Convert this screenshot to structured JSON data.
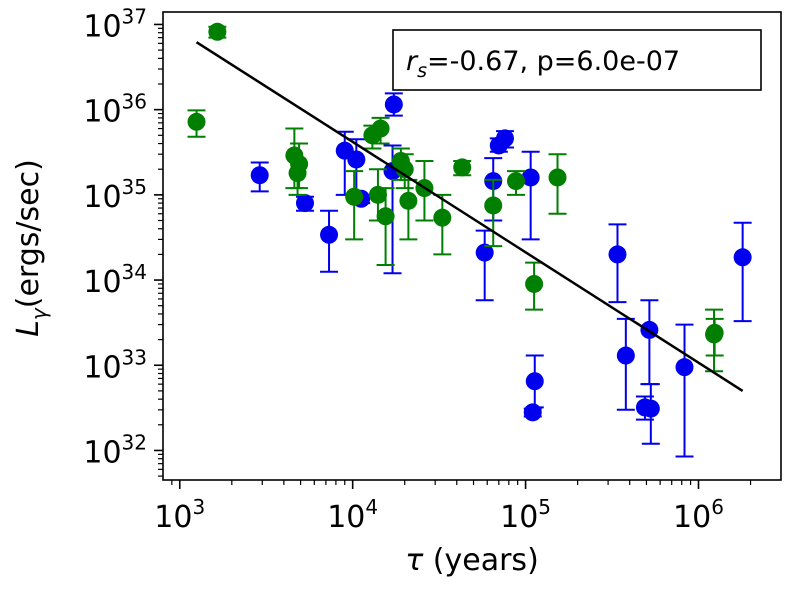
{
  "chart_data": {
    "type": "scatter",
    "title": "",
    "xscale": "log",
    "yscale": "log",
    "xlabel": {
      "symbol": "τ",
      "text": " (years)"
    },
    "ylabel": {
      "symbol": "L",
      "subscript": "γ",
      "text": "(ergs/sec)"
    },
    "xlim": [
      800,
      3000000
    ],
    "ylim": [
      4.5e+31,
      1.4e+37
    ],
    "x_ticks": [
      {
        "base": "10",
        "exp": "3",
        "value": 1000
      },
      {
        "base": "10",
        "exp": "4",
        "value": 10000
      },
      {
        "base": "10",
        "exp": "5",
        "value": 100000
      },
      {
        "base": "10",
        "exp": "6",
        "value": 1000000
      }
    ],
    "y_ticks": [
      {
        "base": "10",
        "exp": "32",
        "value": 1e+32
      },
      {
        "base": "10",
        "exp": "33",
        "value": 1e+33
      },
      {
        "base": "10",
        "exp": "34",
        "value": 1e+34
      },
      {
        "base": "10",
        "exp": "35",
        "value": 1e+35
      },
      {
        "base": "10",
        "exp": "36",
        "value": 1e+36
      },
      {
        "base": "10",
        "exp": "37",
        "value": 1e+37
      }
    ],
    "annotation": {
      "symbol": "r",
      "subscript": "s",
      "text": "=-0.67, p=6.0e-07"
    },
    "fit_line": {
      "x": [
        1250,
        1800000
      ],
      "y": [
        6.2e+36,
        5e+32
      ],
      "color": "#000000"
    },
    "series": [
      {
        "name": "blue",
        "color": "#0000ee",
        "points": [
          {
            "x": 2900,
            "y": 1.7e+35,
            "ylo": 1.1e+35,
            "yhi": 2.4e+35
          },
          {
            "x": 5300,
            "y": 8e+34,
            "ylo": 6.5e+34,
            "yhi": 9.5e+34
          },
          {
            "x": 7300,
            "y": 3.4e+34,
            "ylo": 1.25e+34,
            "yhi": 6.5e+34
          },
          {
            "x": 9000,
            "y": 3.3e+35,
            "ylo": 1e+35,
            "yhi": 5.5e+35
          },
          {
            "x": 10500,
            "y": 2.6e+35,
            "ylo": 1e+35,
            "yhi": 4.5e+35
          },
          {
            "x": 11200,
            "y": 9e+34,
            "ylo": 8e+34,
            "yhi": 1e+35
          },
          {
            "x": 17000,
            "y": 1.9e+35,
            "ylo": 1.2e+34,
            "yhi": 3.8e+35
          },
          {
            "x": 17300,
            "y": 1.15e+36,
            "ylo": 8.5e+35,
            "yhi": 1.55e+36
          },
          {
            "x": 58000,
            "y": 2.1e+34,
            "ylo": 5.8e+33,
            "yhi": 3.8e+34
          },
          {
            "x": 65000,
            "y": 1.45e+35,
            "ylo": 5e+34,
            "yhi": 2.7e+35
          },
          {
            "x": 70000,
            "y": 3.8e+35,
            "ylo": 3.2e+35,
            "yhi": 4.6e+35
          },
          {
            "x": 76000,
            "y": 4.6e+35,
            "ylo": 3.6e+35,
            "yhi": 5.6e+35
          },
          {
            "x": 107000,
            "y": 1.6e+35,
            "ylo": 3e+34,
            "yhi": 3.2e+35
          },
          {
            "x": 110000,
            "y": 2.8e+32,
            "ylo": 2.5e+32,
            "yhi": 3.1e+32
          },
          {
            "x": 113000,
            "y": 6.5e+32,
            "ylo": 3.2e+32,
            "yhi": 1.3e+33
          },
          {
            "x": 340000,
            "y": 2e+34,
            "ylo": 5.5e+33,
            "yhi": 4.5e+34
          },
          {
            "x": 380000,
            "y": 1.3e+33,
            "ylo": 3e+32,
            "yhi": 3.5e+33
          },
          {
            "x": 490000,
            "y": 3.2e+32,
            "ylo": 2.3e+32,
            "yhi": 4.3e+32
          },
          {
            "x": 520000,
            "y": 2.6e+33,
            "ylo": 6e+32,
            "yhi": 5.8e+33
          },
          {
            "x": 530000,
            "y": 3.1e+32,
            "ylo": 1.2e+32,
            "yhi": 6e+32
          },
          {
            "x": 830000,
            "y": 9.5e+32,
            "ylo": 8.5e+31,
            "yhi": 3e+33
          },
          {
            "x": 1800000,
            "y": 1.85e+34,
            "ylo": 3.3e+33,
            "yhi": 4.7e+34
          }
        ]
      },
      {
        "name": "green",
        "color": "#007f00",
        "points": [
          {
            "x": 1250,
            "y": 7.2e+35,
            "ylo": 4.8e+35,
            "yhi": 9.8e+35
          },
          {
            "x": 1650,
            "y": 8.2e+36,
            "ylo": 7e+36,
            "yhi": 9.4e+36
          },
          {
            "x": 4600,
            "y": 2.9e+35,
            "ylo": 1.2e+35,
            "yhi": 6e+35
          },
          {
            "x": 4800,
            "y": 1.8e+35,
            "ylo": 1e+35,
            "yhi": 2.6e+35
          },
          {
            "x": 4900,
            "y": 2.3e+35,
            "ylo": 1.2e+35,
            "yhi": 4e+35
          },
          {
            "x": 10200,
            "y": 9.5e+34,
            "ylo": 3e+34,
            "yhi": 1.9e+35
          },
          {
            "x": 13000,
            "y": 5e+35,
            "ylo": 3.5e+35,
            "yhi": 6.5e+35
          },
          {
            "x": 14000,
            "y": 1e+35,
            "ylo": 5e+34,
            "yhi": 2e+35
          },
          {
            "x": 14500,
            "y": 6e+35,
            "ylo": 4e+35,
            "yhi": 8e+35
          },
          {
            "x": 15500,
            "y": 5.6e+34,
            "ylo": 1.5e+34,
            "yhi": 1.2e+35
          },
          {
            "x": 19000,
            "y": 2.5e+35,
            "ylo": 1.5e+35,
            "yhi": 3.5e+35
          },
          {
            "x": 20000,
            "y": 2e+35,
            "ylo": 1.2e+35,
            "yhi": 3e+35
          },
          {
            "x": 21000,
            "y": 8.5e+34,
            "ylo": 3e+34,
            "yhi": 1.5e+35
          },
          {
            "x": 26000,
            "y": 1.2e+35,
            "ylo": 5e+34,
            "yhi": 2.5e+35
          },
          {
            "x": 33000,
            "y": 5.4e+34,
            "ylo": 2e+34,
            "yhi": 1e+35
          },
          {
            "x": 43000,
            "y": 2.1e+35,
            "ylo": 1.7e+35,
            "yhi": 2.5e+35
          },
          {
            "x": 65000,
            "y": 7.5e+34,
            "ylo": 2.5e+34,
            "yhi": 1.5e+35
          },
          {
            "x": 88000,
            "y": 1.45e+35,
            "ylo": 1e+35,
            "yhi": 1.9e+35
          },
          {
            "x": 112000,
            "y": 9e+33,
            "ylo": 4.5e+33,
            "yhi": 1.6e+34
          },
          {
            "x": 153000,
            "y": 1.6e+35,
            "ylo": 6e+34,
            "yhi": 3e+35
          },
          {
            "x": 1230000,
            "y": 2.3e+33,
            "ylo": 8.5e+32,
            "yhi": 4.5e+33
          },
          {
            "x": 1240000,
            "y": 2.4e+33,
            "ylo": 1.3e+33,
            "yhi": 3.5e+33
          }
        ]
      }
    ]
  }
}
